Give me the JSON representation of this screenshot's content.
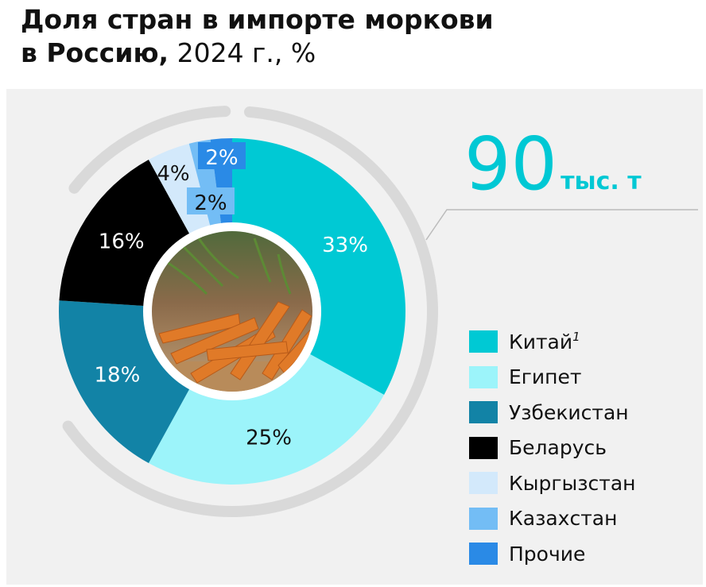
{
  "title": {
    "line1": "Доля стран в импорте моркови",
    "line2_bold": "в Россию,",
    "line2_rest": " 2024 г., %"
  },
  "total": {
    "value": "90",
    "unit": "тыс. т"
  },
  "colors": {
    "panel_bg": "#f1f1f1",
    "outer_ring": "#d9d9d9",
    "accent": "#00c8d4"
  },
  "chart_data": {
    "type": "pie",
    "donut": true,
    "center_image": "carrots-photo",
    "slices": [
      {
        "name": "Китай",
        "value": 33,
        "label": "33%",
        "color": "#00c9d4",
        "label_color": "#ffffff",
        "footnote": "1"
      },
      {
        "name": "Египет",
        "value": 25,
        "label": "25%",
        "color": "#9cf4fa",
        "label_color": "#111111"
      },
      {
        "name": "Узбекистан",
        "value": 18,
        "label": "18%",
        "color": "#1283a6",
        "label_color": "#ffffff"
      },
      {
        "name": "Беларусь",
        "value": 16,
        "label": "16%",
        "color": "#000000",
        "label_color": "#ffffff"
      },
      {
        "name": "Кыргызстан",
        "value": 4,
        "label": "4%",
        "color": "#d3e9fb",
        "label_color": "#111111"
      },
      {
        "name": "Казахстан",
        "value": 2,
        "label": "2%",
        "color": "#73bdf5",
        "label_color": "#111111"
      },
      {
        "name": "Прочие",
        "value": 2,
        "label": "2%",
        "color": "#2a8ae6",
        "label_color": "#ffffff"
      }
    ]
  }
}
